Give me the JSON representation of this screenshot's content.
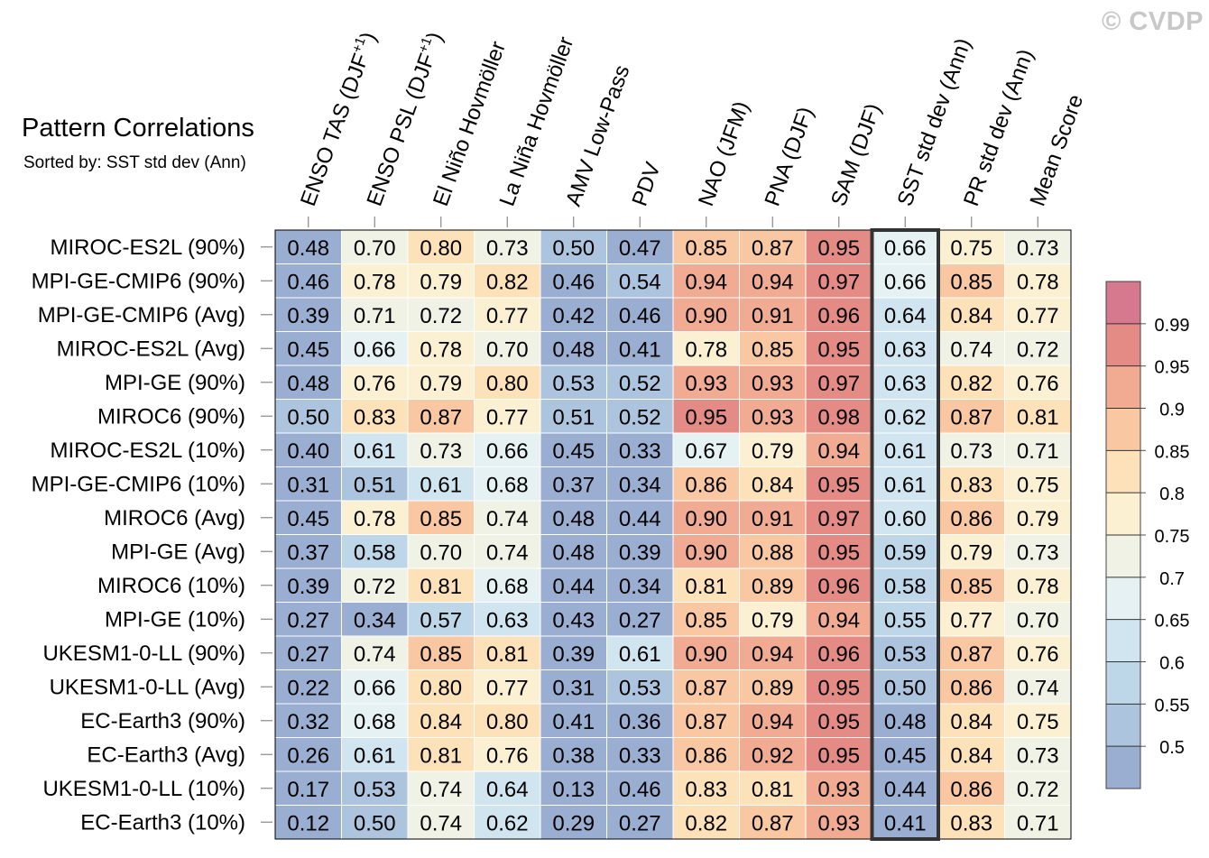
{
  "header": {
    "title": "Pattern Correlations",
    "subtitle": "Sorted by: SST std dev (Ann)",
    "watermark": "© CVDP"
  },
  "chart_data": {
    "type": "heatmap",
    "columns": [
      "ENSO TAS (DJF+1)",
      "ENSO PSL (DJF+1)",
      "El Niño Hovmöller",
      "La Niña Hovmöller",
      "AMV Low-Pass",
      "PDV",
      "NAO (JFM)",
      "PNA (DJF)",
      "SAM (DJF)",
      "SST std dev (Ann)",
      "PR std dev (Ann)",
      "Mean Score"
    ],
    "column_superscripts": [
      "+1",
      "+1",
      "",
      "",
      "",
      "",
      "",
      "",
      "",
      "",
      "",
      ""
    ],
    "rows": [
      "MIROC-ES2L (90%)",
      "MPI-GE-CMIP6 (90%)",
      "MPI-GE-CMIP6 (Avg)",
      "MIROC-ES2L (Avg)",
      "MPI-GE (90%)",
      "MIROC6 (90%)",
      "MIROC-ES2L (10%)",
      "MPI-GE-CMIP6 (10%)",
      "MIROC6 (Avg)",
      "MPI-GE (Avg)",
      "MIROC6 (10%)",
      "MPI-GE (10%)",
      "UKESM1-0-LL (90%)",
      "UKESM1-0-LL (Avg)",
      "EC-Earth3 (90%)",
      "EC-Earth3 (Avg)",
      "UKESM1-0-LL (10%)",
      "EC-Earth3 (10%)"
    ],
    "values": [
      [
        "0.48",
        "0.70",
        "0.80",
        "0.73",
        "0.50",
        "0.47",
        "0.85",
        "0.87",
        "0.95",
        "0.66",
        "0.75",
        "0.73"
      ],
      [
        "0.46",
        "0.78",
        "0.79",
        "0.82",
        "0.46",
        "0.54",
        "0.94",
        "0.94",
        "0.97",
        "0.66",
        "0.85",
        "0.78"
      ],
      [
        "0.39",
        "0.71",
        "0.72",
        "0.77",
        "0.42",
        "0.46",
        "0.90",
        "0.91",
        "0.96",
        "0.64",
        "0.84",
        "0.77"
      ],
      [
        "0.45",
        "0.66",
        "0.78",
        "0.70",
        "0.48",
        "0.41",
        "0.78",
        "0.85",
        "0.95",
        "0.63",
        "0.74",
        "0.72"
      ],
      [
        "0.48",
        "0.76",
        "0.79",
        "0.80",
        "0.53",
        "0.52",
        "0.93",
        "0.93",
        "0.97",
        "0.63",
        "0.82",
        "0.76"
      ],
      [
        "0.50",
        "0.83",
        "0.87",
        "0.77",
        "0.51",
        "0.52",
        "0.95",
        "0.93",
        "0.98",
        "0.62",
        "0.87",
        "0.81"
      ],
      [
        "0.40",
        "0.61",
        "0.73",
        "0.66",
        "0.45",
        "0.33",
        "0.67",
        "0.79",
        "0.94",
        "0.61",
        "0.73",
        "0.71"
      ],
      [
        "0.31",
        "0.51",
        "0.61",
        "0.68",
        "0.37",
        "0.34",
        "0.86",
        "0.84",
        "0.95",
        "0.61",
        "0.83",
        "0.75"
      ],
      [
        "0.45",
        "0.78",
        "0.85",
        "0.74",
        "0.48",
        "0.44",
        "0.90",
        "0.91",
        "0.97",
        "0.60",
        "0.86",
        "0.79"
      ],
      [
        "0.37",
        "0.58",
        "0.70",
        "0.74",
        "0.48",
        "0.39",
        "0.90",
        "0.88",
        "0.95",
        "0.59",
        "0.79",
        "0.73"
      ],
      [
        "0.39",
        "0.72",
        "0.81",
        "0.68",
        "0.44",
        "0.34",
        "0.81",
        "0.89",
        "0.96",
        "0.58",
        "0.85",
        "0.78"
      ],
      [
        "0.27",
        "0.34",
        "0.57",
        "0.63",
        "0.43",
        "0.27",
        "0.85",
        "0.79",
        "0.94",
        "0.55",
        "0.77",
        "0.70"
      ],
      [
        "0.27",
        "0.74",
        "0.85",
        "0.81",
        "0.39",
        "0.61",
        "0.90",
        "0.94",
        "0.96",
        "0.53",
        "0.87",
        "0.76"
      ],
      [
        "0.22",
        "0.66",
        "0.80",
        "0.77",
        "0.31",
        "0.53",
        "0.87",
        "0.89",
        "0.95",
        "0.50",
        "0.86",
        "0.74"
      ],
      [
        "0.32",
        "0.68",
        "0.84",
        "0.80",
        "0.41",
        "0.36",
        "0.87",
        "0.94",
        "0.95",
        "0.48",
        "0.84",
        "0.75"
      ],
      [
        "0.26",
        "0.61",
        "0.81",
        "0.76",
        "0.38",
        "0.33",
        "0.86",
        "0.92",
        "0.95",
        "0.45",
        "0.84",
        "0.73"
      ],
      [
        "0.17",
        "0.53",
        "0.74",
        "0.64",
        "0.13",
        "0.46",
        "0.83",
        "0.81",
        "0.93",
        "0.44",
        "0.86",
        "0.72"
      ],
      [
        "0.12",
        "0.50",
        "0.74",
        "0.62",
        "0.29",
        "0.27",
        "0.82",
        "0.87",
        "0.93",
        "0.41",
        "0.83",
        "0.71"
      ]
    ],
    "highlighted_column": "SST std dev (Ann)",
    "colorbar": {
      "levels": [
        0.5,
        0.55,
        0.6,
        0.65,
        0.7,
        0.75,
        0.8,
        0.85,
        0.9,
        0.95,
        0.99
      ],
      "labels": [
        "0.5",
        "0.55",
        "0.6",
        "0.65",
        "0.7",
        "0.75",
        "0.8",
        "0.85",
        "0.9",
        "0.95",
        "0.99"
      ],
      "colors": [
        "#9aaed2",
        "#adc4df",
        "#bdd6e8",
        "#d0e5ef",
        "#e5f1f3",
        "#f1f2e6",
        "#fbf1d2",
        "#fde1b8",
        "#f9c7a1",
        "#f1ab93",
        "#e58b86",
        "#d6798e"
      ]
    }
  }
}
